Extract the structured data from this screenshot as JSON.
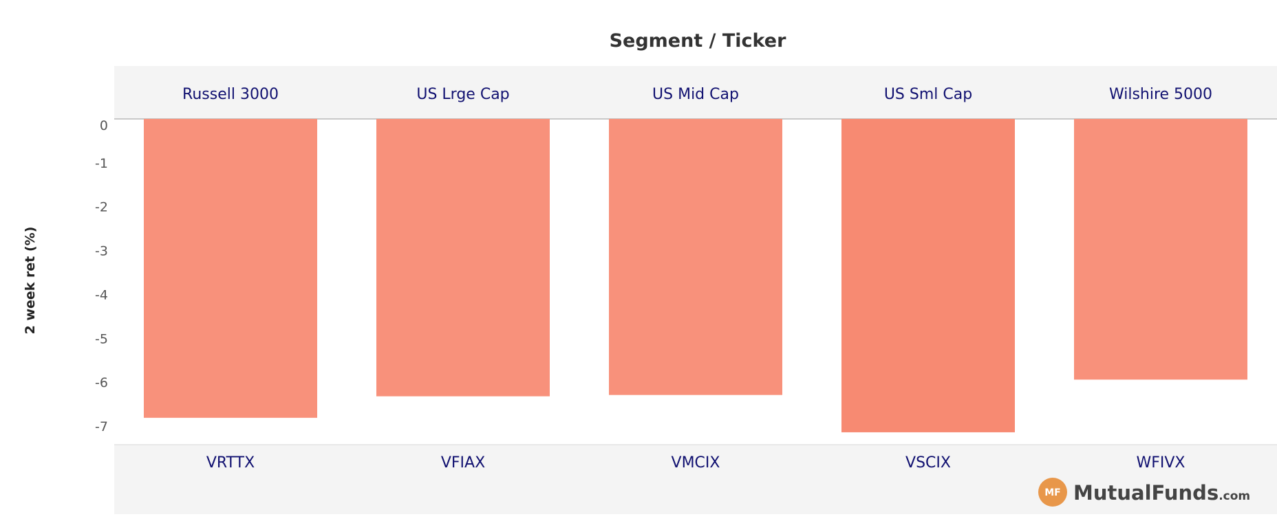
{
  "chart_data": {
    "type": "bar",
    "title": "Segment  /  Ticker",
    "ylabel": "2 week ret (%)",
    "xlabel": "",
    "categories": [
      "Russell 3000",
      "US Lrge Cap",
      "US Mid Cap",
      "US Sml Cap",
      "Wilshire 5000"
    ],
    "tickers": [
      "VRTTX",
      "VFIAX",
      "VMCIX",
      "VSCIX",
      "WFIVX"
    ],
    "values": [
      -6.81,
      -6.32,
      -6.29,
      -7.14,
      -5.94
    ],
    "ylim": [
      -7.5,
      0
    ],
    "yticks": [
      0,
      -1,
      -2,
      -3,
      -4,
      -5,
      -6,
      -7
    ],
    "grid": false,
    "bar_colors": [
      "#f8917b",
      "#f8917b",
      "#f8917b",
      "#f78a72",
      "#f8917b"
    ]
  },
  "logo": {
    "badge": "MF",
    "name": "MutualFunds",
    "suffix": ".com",
    "badge_color": "#e8974a"
  }
}
